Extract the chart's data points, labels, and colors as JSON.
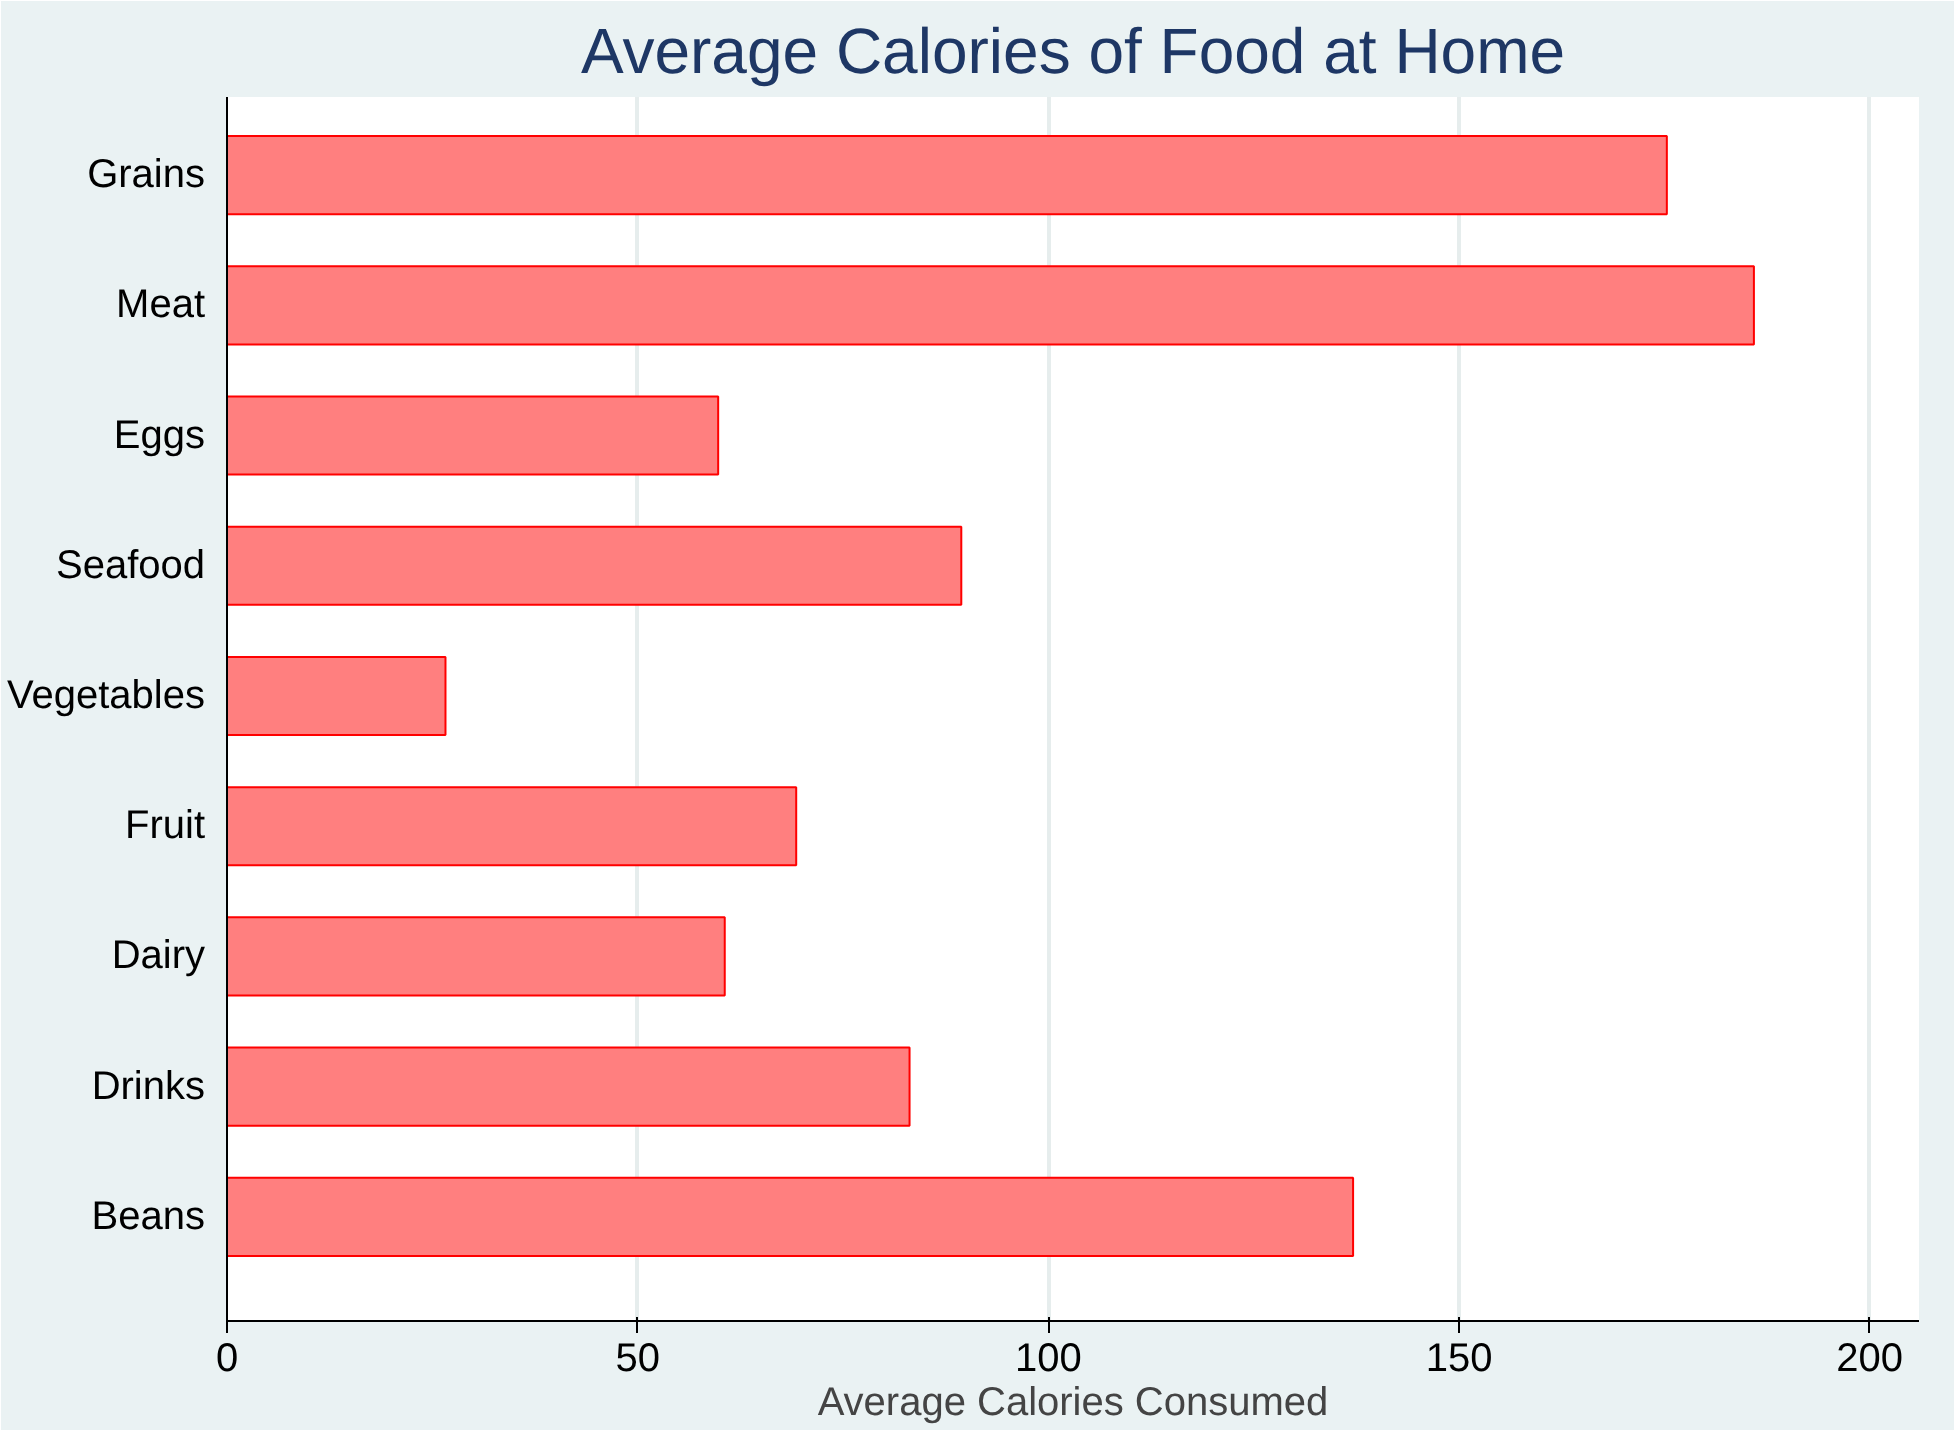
{
  "chart_data": {
    "type": "bar",
    "orientation": "horizontal",
    "title": "Average Calories of Food at Home",
    "xlabel": "Average Calories Consumed",
    "categories": [
      "Grains",
      "Meat",
      "Eggs",
      "Seafood",
      "Vegetables",
      "Fruit",
      "Dairy",
      "Drinks",
      "Beans"
    ],
    "values": [
      175.3,
      185.9,
      59.8,
      89.4,
      26.6,
      69.3,
      60.6,
      83.1,
      137.1
    ],
    "color": "#ff7f7f",
    "xlim": [
      0,
      206
    ],
    "xticks": [
      0,
      50,
      100,
      150,
      200
    ],
    "grid": "x"
  }
}
